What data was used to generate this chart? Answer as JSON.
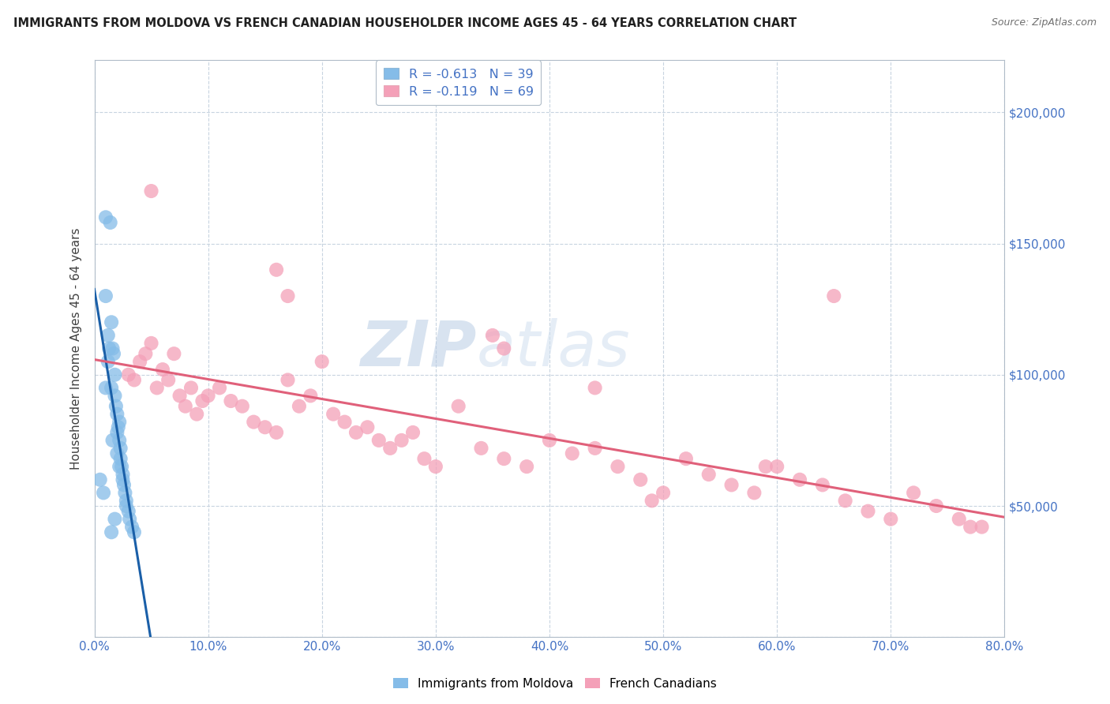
{
  "title": "IMMIGRANTS FROM MOLDOVA VS FRENCH CANADIAN HOUSEHOLDER INCOME AGES 45 - 64 YEARS CORRELATION CHART",
  "source": "Source: ZipAtlas.com",
  "ylabel": "Householder Income Ages 45 - 64 years",
  "xmin": 0.0,
  "xmax": 0.8,
  "ymin": 0,
  "ymax": 220000,
  "yticks": [
    0,
    50000,
    100000,
    150000,
    200000
  ],
  "ytick_labels": [
    "",
    "$50,000",
    "$100,000",
    "$150,000",
    "$200,000"
  ],
  "legend_blue_label": "R = -0.613   N = 39",
  "legend_pink_label": "R = -0.119   N = 69",
  "watermark_zip": "ZIP",
  "watermark_atlas": "atlas",
  "blue_color": "#85bce8",
  "pink_color": "#f4a0b8",
  "blue_line_color": "#1a5fa8",
  "pink_line_color": "#e0607a",
  "blue_scatter_x": [
    0.005,
    0.008,
    0.01,
    0.01,
    0.012,
    0.012,
    0.013,
    0.015,
    0.015,
    0.016,
    0.017,
    0.018,
    0.018,
    0.019,
    0.02,
    0.02,
    0.021,
    0.022,
    0.022,
    0.023,
    0.023,
    0.024,
    0.025,
    0.026,
    0.027,
    0.028,
    0.03,
    0.031,
    0.033,
    0.035,
    0.01,
    0.014,
    0.016,
    0.02,
    0.022,
    0.025,
    0.028,
    0.018,
    0.015
  ],
  "blue_scatter_y": [
    60000,
    55000,
    130000,
    95000,
    115000,
    105000,
    110000,
    120000,
    95000,
    110000,
    108000,
    100000,
    92000,
    88000,
    85000,
    78000,
    80000,
    82000,
    75000,
    72000,
    68000,
    65000,
    62000,
    58000,
    55000,
    50000,
    48000,
    45000,
    42000,
    40000,
    160000,
    158000,
    75000,
    70000,
    65000,
    60000,
    52000,
    45000,
    40000
  ],
  "pink_scatter_x": [
    0.03,
    0.035,
    0.04,
    0.045,
    0.05,
    0.055,
    0.06,
    0.065,
    0.07,
    0.075,
    0.08,
    0.085,
    0.09,
    0.095,
    0.1,
    0.11,
    0.12,
    0.13,
    0.14,
    0.15,
    0.16,
    0.17,
    0.18,
    0.19,
    0.2,
    0.21,
    0.22,
    0.23,
    0.24,
    0.25,
    0.26,
    0.27,
    0.28,
    0.29,
    0.3,
    0.32,
    0.34,
    0.36,
    0.38,
    0.4,
    0.42,
    0.44,
    0.46,
    0.48,
    0.5,
    0.52,
    0.54,
    0.56,
    0.58,
    0.6,
    0.62,
    0.64,
    0.66,
    0.68,
    0.7,
    0.72,
    0.74,
    0.76,
    0.78,
    0.05,
    0.16,
    0.17,
    0.35,
    0.36,
    0.44,
    0.49,
    0.59,
    0.65,
    0.77
  ],
  "pink_scatter_y": [
    100000,
    98000,
    105000,
    108000,
    112000,
    95000,
    102000,
    98000,
    108000,
    92000,
    88000,
    95000,
    85000,
    90000,
    92000,
    95000,
    90000,
    88000,
    82000,
    80000,
    78000,
    98000,
    88000,
    92000,
    105000,
    85000,
    82000,
    78000,
    80000,
    75000,
    72000,
    75000,
    78000,
    68000,
    65000,
    88000,
    72000,
    68000,
    65000,
    75000,
    70000,
    72000,
    65000,
    60000,
    55000,
    68000,
    62000,
    58000,
    55000,
    65000,
    60000,
    58000,
    52000,
    48000,
    45000,
    55000,
    50000,
    45000,
    42000,
    170000,
    140000,
    130000,
    115000,
    110000,
    95000,
    52000,
    65000,
    130000,
    42000
  ]
}
